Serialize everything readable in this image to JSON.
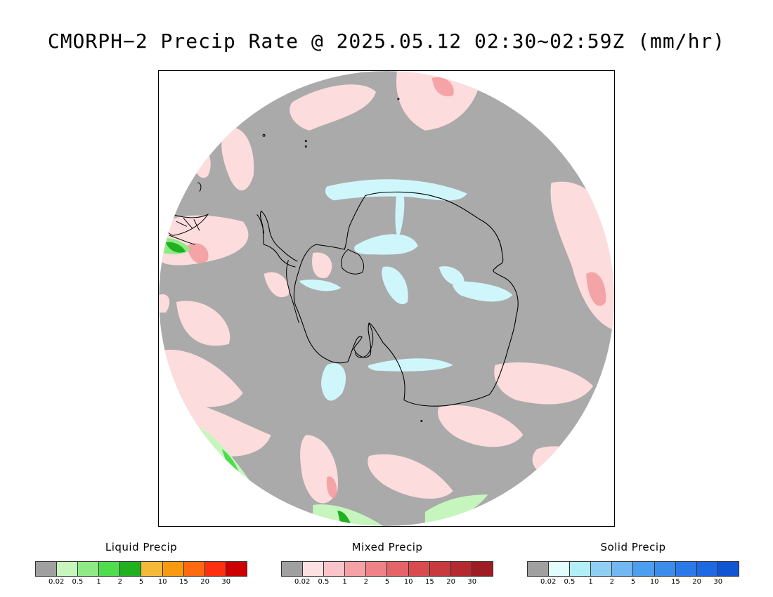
{
  "title": "CMORPH−2 Precip Rate @ 2025.05.12 02:30~02:59Z (mm/hr)",
  "map": {
    "projection": "south-polar-stereographic",
    "background_color": "#aaaaaa",
    "coastline_color": "#000000"
  },
  "legends": [
    {
      "title": "Liquid Precip",
      "colors": [
        "#a0a0a0",
        "#c6f6bd",
        "#8fea85",
        "#4fdc4f",
        "#20b020",
        "#f5b93a",
        "#f79a10",
        "#ff6a10",
        "#ff3010",
        "#cc0000"
      ],
      "labels": [
        "0.02",
        "0.5",
        "1",
        "2",
        "5",
        "10",
        "15",
        "20",
        "30"
      ]
    },
    {
      "title": "Mixed Precip",
      "colors": [
        "#a0a0a0",
        "#fde0e2",
        "#fbc4c8",
        "#f5a2a6",
        "#ef8286",
        "#e46468",
        "#d84c50",
        "#c83a3e",
        "#b42a2e",
        "#9c1e22"
      ],
      "labels": [
        "0.02",
        "0.5",
        "1",
        "2",
        "5",
        "10",
        "15",
        "20",
        "30"
      ]
    },
    {
      "title": "Solid Precip",
      "colors": [
        "#a0a0a0",
        "#e2fdfd",
        "#b2eef6",
        "#90cff4",
        "#72b6f2",
        "#4e9ef0",
        "#3c8cec",
        "#2c7ae8",
        "#1e68e2",
        "#1055d2"
      ],
      "labels": [
        "0.02",
        "0.5",
        "1",
        "2",
        "5",
        "10",
        "15",
        "20",
        "30"
      ]
    }
  ]
}
